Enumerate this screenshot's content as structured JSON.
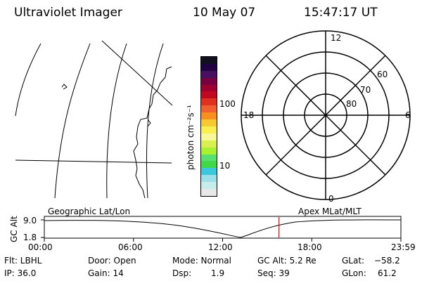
{
  "header": {
    "instrument": "Ultraviolet Imager",
    "date": "10 May 07",
    "time": "15:47:17 UT"
  },
  "colorbar": {
    "unit_label": "photon cm⁻²s⁻¹",
    "tick_100": "100",
    "tick_10": "10",
    "colors": [
      "#e8e8e8",
      "#c8ecec",
      "#9be0e8",
      "#3cc8dc",
      "#40d848",
      "#58e070",
      "#a8f030",
      "#d8f050",
      "#f8f898",
      "#f8f050",
      "#f8c830",
      "#f89020",
      "#f06030",
      "#e03020",
      "#c00820",
      "#a00030",
      "#780040",
      "#481060",
      "#200040",
      "#101020"
    ]
  },
  "polar_plot": {
    "mlt_labels": {
      "top": "12",
      "right": "6",
      "bottom": "0",
      "left": "18"
    },
    "lat_labels": [
      "60",
      "70",
      "80"
    ]
  },
  "timeline": {
    "ylabel": "GC Alt",
    "y_max": "9.0",
    "y_min": "1.8",
    "left_label": "Geographic Lat/Lon",
    "right_label": "Apex MLat/MLT",
    "xticks": [
      "00:00",
      "06:00",
      "12:00",
      "18:00",
      "23:59"
    ],
    "current_time_fraction": 0.658,
    "accent_color": "#ff0000"
  },
  "info": {
    "filter": "Flt: LBHL",
    "ip": "IP: 36.0",
    "door": "Door: Open",
    "gain": "Gain: 14",
    "mode": "Mode: Normal",
    "dsp_label": "Dsp:",
    "dsp_value": "1.9",
    "gc_alt": "GC Alt: 5.2 Re",
    "seq": "Seq: 39",
    "glat_label": "GLat:",
    "glat_value": "−58.2",
    "glon_label": "GLon:",
    "glon_value": "61.2"
  }
}
